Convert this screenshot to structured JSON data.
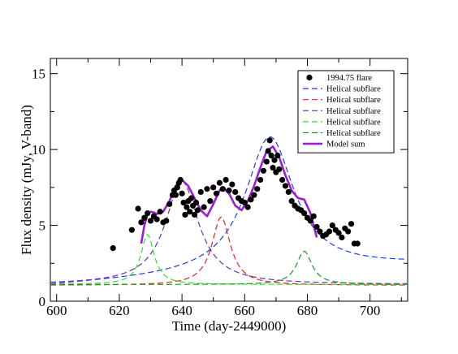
{
  "chart_data": {
    "type": "line",
    "title": "",
    "xlabel": "Time (day-2449000)",
    "ylabel": "Flux density (mJy, V-band)",
    "xlim": [
      598,
      712
    ],
    "ylim": [
      0,
      16
    ],
    "xticks": [
      600,
      620,
      640,
      660,
      680,
      700
    ],
    "yticks": [
      0,
      5,
      10,
      15
    ],
    "grid": false,
    "legend_position": "top-right",
    "scatter": {
      "name": "1994.75 flare",
      "color": "#000000",
      "points": [
        [
          618,
          3.5
        ],
        [
          624,
          4.7
        ],
        [
          626,
          6.1
        ],
        [
          627,
          5.2
        ],
        [
          628,
          5.5
        ],
        [
          629,
          5.8
        ],
        [
          630,
          5.3
        ],
        [
          631,
          5.6
        ],
        [
          632,
          5.4
        ],
        [
          633,
          5.9
        ],
        [
          634,
          5.2
        ],
        [
          635,
          5.3
        ],
        [
          636,
          6.4
        ],
        [
          637,
          7.0
        ],
        [
          637.5,
          7.3
        ],
        [
          638,
          7.0
        ],
        [
          638.5,
          7.5
        ],
        [
          639,
          7.8
        ],
        [
          639.5,
          8.0
        ],
        [
          640,
          7.1
        ],
        [
          640.5,
          6.5
        ],
        [
          641,
          5.7
        ],
        [
          641.5,
          6.2
        ],
        [
          642,
          6.6
        ],
        [
          642.5,
          5.9
        ],
        [
          643,
          6.8
        ],
        [
          643.5,
          6.3
        ],
        [
          644,
          5.7
        ],
        [
          644.5,
          6.5
        ],
        [
          645,
          6.0
        ],
        [
          646,
          7.2
        ],
        [
          647,
          6.2
        ],
        [
          648,
          7.4
        ],
        [
          649,
          6.6
        ],
        [
          650,
          7.5
        ],
        [
          651,
          7.1
        ],
        [
          652,
          7.8
        ],
        [
          653,
          7.4
        ],
        [
          654,
          8.0
        ],
        [
          655,
          7.3
        ],
        [
          656,
          7.7
        ],
        [
          657,
          7.2
        ],
        [
          658,
          6.8
        ],
        [
          659,
          6.6
        ],
        [
          660,
          6.5
        ],
        [
          661,
          6.2
        ],
        [
          662,
          6.7
        ],
        [
          663,
          7.0
        ],
        [
          664,
          7.4
        ],
        [
          665,
          8.0
        ],
        [
          666,
          8.6
        ],
        [
          667,
          9.2
        ],
        [
          667.5,
          9.9
        ],
        [
          668,
          10.6
        ],
        [
          668.5,
          9.6
        ],
        [
          669,
          8.8
        ],
        [
          669.5,
          9.3
        ],
        [
          670,
          8.5
        ],
        [
          670.5,
          9.6
        ],
        [
          671,
          8.7
        ],
        [
          672,
          8.0
        ],
        [
          673,
          7.6
        ],
        [
          674,
          7.2
        ],
        [
          675,
          6.6
        ],
        [
          676,
          6.3
        ],
        [
          677,
          6.1
        ],
        [
          678,
          6.0
        ],
        [
          679,
          5.8
        ],
        [
          680,
          5.5
        ],
        [
          681,
          5.3
        ],
        [
          682,
          5.6
        ],
        [
          683,
          4.9
        ],
        [
          684,
          4.6
        ],
        [
          685,
          4.3
        ],
        [
          686,
          4.4
        ],
        [
          687,
          4.6
        ],
        [
          688,
          5.0
        ],
        [
          689,
          4.7
        ],
        [
          690,
          4.5
        ],
        [
          691,
          4.2
        ],
        [
          692,
          4.8
        ],
        [
          693,
          4.6
        ],
        [
          694,
          5.1
        ],
        [
          695,
          3.8
        ],
        [
          696,
          3.8
        ]
      ]
    },
    "components": [
      {
        "name": "Helical subflare",
        "color": "#1a3aff",
        "peak": 668,
        "amp": 9.0,
        "width": 9.5,
        "baseline": 1.0,
        "extra": 0.012
      },
      {
        "name": "Helical subflare",
        "color": "#e8241b",
        "peak": 652.5,
        "amp": 4.5,
        "width": 3.6,
        "baseline": 1.05,
        "extra": 0.0
      },
      {
        "name": "Helical subflare",
        "color": "#6b2fc0",
        "peak": 640,
        "amp": 6.8,
        "width": 6.5,
        "baseline": 1.1,
        "extra": 0.0
      },
      {
        "name": "Helical subflare",
        "color": "#33e033",
        "peak": 629,
        "amp": 3.3,
        "width": 2.6,
        "baseline": 1.1,
        "extra": 0.0
      },
      {
        "name": "Helical subflare",
        "color": "#1a9a1a",
        "peak": 679,
        "amp": 2.2,
        "width": 3.0,
        "baseline": 1.1,
        "extra": 0.0
      }
    ],
    "model_sum": {
      "name": "Model sum",
      "color": "#9b1fd1",
      "points": [
        [
          627,
          3.8
        ],
        [
          628,
          5.0
        ],
        [
          629,
          5.7
        ],
        [
          630,
          5.9
        ],
        [
          631,
          5.85
        ],
        [
          632,
          5.75
        ],
        [
          634,
          5.9
        ],
        [
          636,
          6.6
        ],
        [
          638,
          7.6
        ],
        [
          640,
          8.0
        ],
        [
          642,
          7.6
        ],
        [
          644,
          6.8
        ],
        [
          646,
          6.0
        ],
        [
          648,
          5.6
        ],
        [
          650,
          6.4
        ],
        [
          652,
          7.3
        ],
        [
          653,
          7.5
        ],
        [
          655,
          7.1
        ],
        [
          657,
          6.3
        ],
        [
          659,
          6.0
        ],
        [
          661,
          6.6
        ],
        [
          663,
          7.6
        ],
        [
          665,
          8.8
        ],
        [
          667,
          9.9
        ],
        [
          669,
          10.2
        ],
        [
          671,
          9.5
        ],
        [
          673,
          8.3
        ],
        [
          675,
          7.3
        ],
        [
          677,
          6.8
        ],
        [
          679,
          6.7
        ],
        [
          681,
          5.8
        ],
        [
          683,
          4.2
        ]
      ]
    }
  }
}
